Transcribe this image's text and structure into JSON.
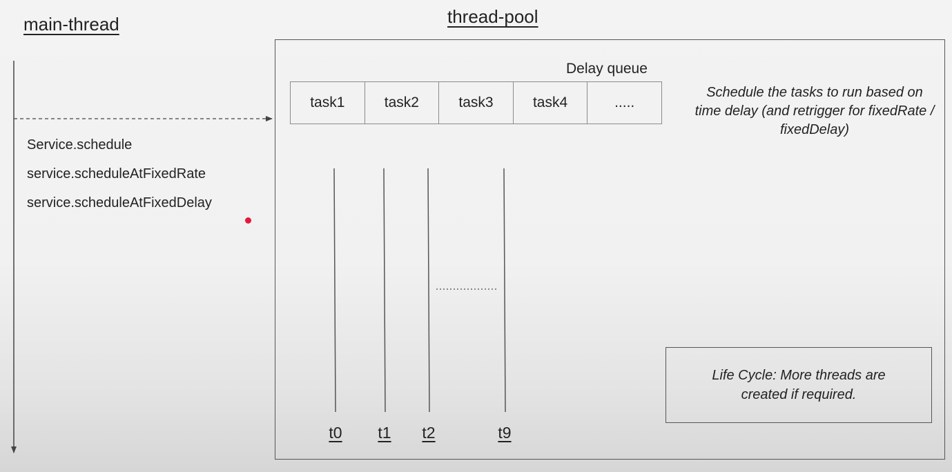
{
  "main_thread": {
    "title": "main-thread",
    "methods": [
      "Service.schedule",
      "service.scheduleAtFixedRate",
      "service.scheduleAtFixedDelay"
    ]
  },
  "thread_pool": {
    "title": "thread-pool",
    "queue_title": "Delay queue",
    "queue_items": [
      "task1",
      "task2",
      "task3",
      "task4",
      "....."
    ],
    "schedule_note": "Schedule the tasks to run based on time delay (and retrigger for fixedRate / fixedDelay)",
    "threads": [
      "t0",
      "t1",
      "t2",
      "t9"
    ],
    "lifecycle_note": "Life Cycle: More threads are created if required."
  },
  "colors": {
    "lines": "#444444",
    "pointer_dot": "#e8173a"
  }
}
